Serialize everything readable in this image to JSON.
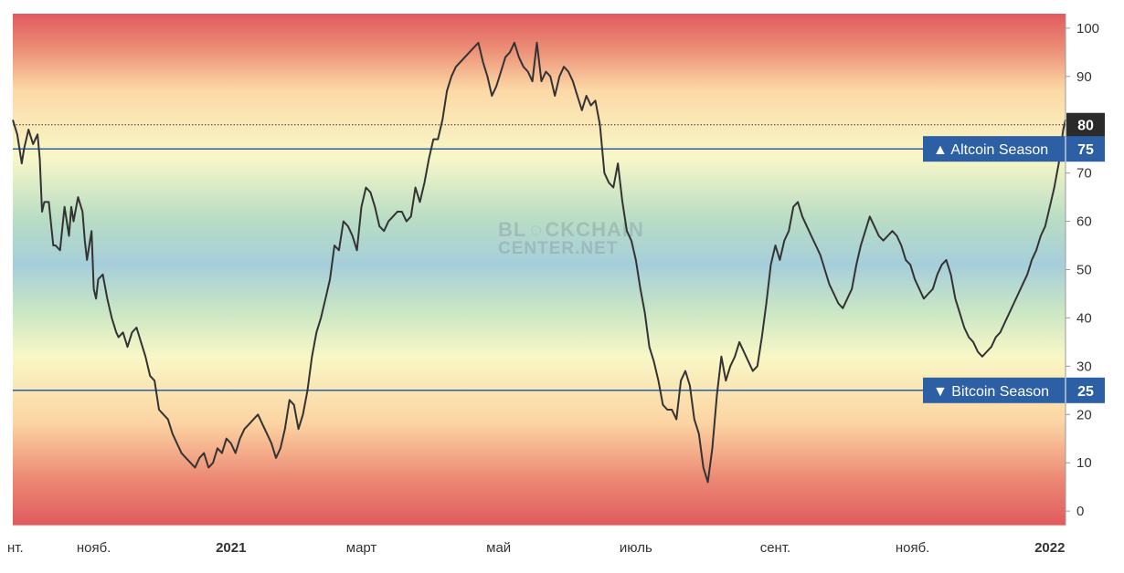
{
  "chart_data": {
    "type": "line",
    "title": "",
    "xlabel": "",
    "ylabel": "",
    "ylim": [
      -3,
      103
    ],
    "y_ticks": [
      0,
      10,
      20,
      30,
      40,
      50,
      60,
      70,
      80,
      90,
      100
    ],
    "x_ticks": [
      {
        "label": "нт.",
        "day": 0
      },
      {
        "label": "нояб.",
        "day": 36
      },
      {
        "label": "2021",
        "day": 97
      },
      {
        "label": "март",
        "day": 155
      },
      {
        "label": "май",
        "day": 216
      },
      {
        "label": "июль",
        "day": 277
      },
      {
        "label": "сент.",
        "day": 339
      },
      {
        "label": "нояб.",
        "day": 400
      },
      {
        "label": "2022",
        "day": 461
      }
    ],
    "bold_x_ticks": [
      "2021",
      "2022"
    ],
    "reference_lines": [
      {
        "value": 75,
        "label": "Altcoin Season",
        "marker": "▲",
        "style": "solid",
        "color": "#2c5fa4"
      },
      {
        "value": 25,
        "label": "Bitcoin Season",
        "marker": "▼",
        "style": "solid",
        "color": "#2c5fa4"
      },
      {
        "value": 80,
        "label": "",
        "style": "dotted",
        "color": "#333333"
      }
    ],
    "current_value_label": "80",
    "watermark": [
      "BL",
      "CKCHAIN",
      "CENTER.NET"
    ],
    "series": [
      {
        "color": "#333333",
        "x": [
          0,
          2,
          4,
          5,
          7,
          9,
          11,
          12,
          13,
          14,
          16,
          18,
          19,
          21,
          23,
          25,
          26,
          27,
          29,
          31,
          32,
          33,
          35,
          36,
          37,
          38,
          40,
          42,
          44,
          46,
          47,
          49,
          51,
          53,
          55,
          57,
          59,
          61,
          63,
          65,
          67,
          69,
          71,
          73,
          75,
          77,
          79,
          81,
          83,
          85,
          87,
          89,
          91,
          93,
          95,
          97,
          99,
          101,
          103,
          105,
          107,
          109,
          111,
          113,
          115,
          117,
          119,
          121,
          123,
          125,
          127,
          129,
          131,
          133,
          135,
          137,
          139,
          141,
          143,
          145,
          147,
          149,
          151,
          153,
          155,
          157,
          159,
          161,
          163,
          165,
          167,
          169,
          171,
          173,
          175,
          177,
          179,
          181,
          183,
          185,
          187,
          189,
          191,
          193,
          195,
          197,
          199,
          201,
          203,
          205,
          207,
          209,
          211,
          213,
          215,
          217,
          219,
          221,
          223,
          225,
          227,
          229,
          231,
          233,
          235,
          237,
          239,
          241,
          243,
          245,
          247,
          249,
          251,
          253,
          255,
          257,
          259,
          261,
          263,
          265,
          267,
          269,
          271,
          273,
          275,
          277,
          279,
          281,
          283,
          285,
          287,
          289,
          291,
          293,
          295,
          297,
          299,
          301,
          303,
          305,
          307,
          309,
          311,
          313,
          315,
          317,
          319,
          321,
          323,
          325,
          327,
          329,
          331,
          333,
          335,
          337,
          339,
          341,
          343,
          345,
          347,
          349,
          351,
          353,
          355,
          357,
          359,
          361,
          363,
          365,
          367,
          369,
          371,
          373,
          375,
          377,
          379,
          381,
          383,
          385,
          387,
          389,
          391,
          393,
          395,
          397,
          399,
          401,
          403,
          405,
          407,
          409,
          411,
          413,
          415,
          417,
          419,
          421,
          423,
          425,
          427,
          429,
          431,
          433,
          435,
          437,
          439,
          441,
          443,
          445,
          447,
          449,
          451,
          453,
          455,
          457,
          459,
          461,
          463,
          465,
          467,
          468
        ],
        "values": [
          81,
          78,
          72,
          75,
          79,
          76,
          78,
          73,
          62,
          64,
          64,
          55,
          55,
          54,
          63,
          57,
          63,
          60,
          65,
          62,
          56,
          52,
          58,
          46,
          44,
          48,
          49,
          44,
          40,
          37,
          36,
          37,
          34,
          37,
          38,
          35,
          32,
          28,
          27,
          21,
          20,
          19,
          16,
          14,
          12,
          11,
          10,
          9,
          11,
          12,
          9,
          10,
          13,
          12,
          15,
          14,
          12,
          15,
          17,
          18,
          19,
          20,
          18,
          16,
          14,
          11,
          13,
          17,
          23,
          22,
          17,
          20,
          25,
          32,
          37,
          40,
          44,
          48,
          55,
          54,
          60,
          59,
          57,
          54,
          63,
          67,
          66,
          63,
          59,
          58,
          60,
          61,
          62,
          62,
          60,
          61,
          67,
          64,
          68,
          73,
          77,
          77,
          81,
          87,
          90,
          92,
          93,
          94,
          95,
          96,
          97,
          93,
          90,
          86,
          88,
          91,
          94,
          95,
          97,
          94,
          92,
          91,
          89,
          97,
          89,
          91,
          90,
          86,
          90,
          92,
          91,
          89,
          86,
          83,
          86,
          84,
          85,
          80,
          70,
          68,
          67,
          72,
          64,
          58,
          56,
          52,
          46,
          41,
          34,
          31,
          27,
          22,
          21,
          21,
          19,
          27,
          29,
          26,
          19,
          16,
          9,
          6,
          13,
          24,
          32,
          27,
          30,
          32,
          35,
          33,
          31,
          29,
          30,
          36,
          43,
          51,
          55,
          52,
          56,
          58,
          63,
          64,
          61,
          59,
          57,
          55,
          53,
          50,
          47,
          45,
          43,
          42,
          44,
          46,
          51,
          55,
          58,
          61,
          59,
          57,
          56,
          57,
          58,
          57,
          55,
          52,
          51,
          48,
          46,
          44,
          45,
          46,
          49,
          51,
          52,
          49,
          44,
          41,
          38,
          36,
          35,
          33,
          32,
          33,
          34,
          36,
          37,
          39,
          41,
          43,
          45,
          47,
          49,
          52,
          54,
          57,
          59,
          63,
          67,
          72,
          79,
          81
        ]
      }
    ]
  }
}
